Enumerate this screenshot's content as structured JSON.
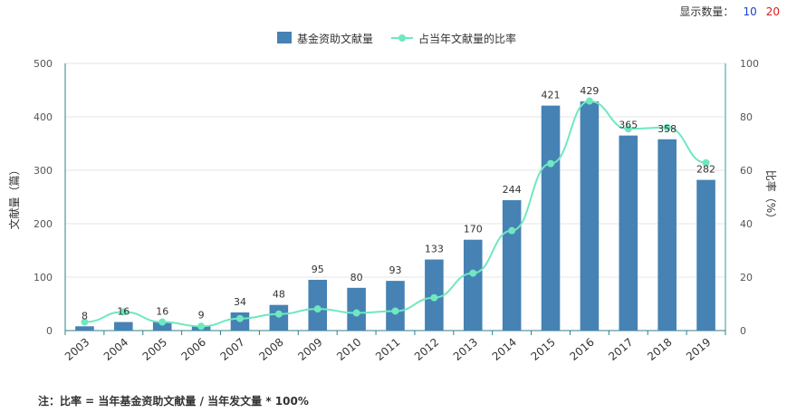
{
  "display_count": {
    "label": "显示数量：",
    "options": [
      "10",
      "20"
    ],
    "colors": [
      "#1a3fd6",
      "#d61a1a"
    ]
  },
  "chart_data": {
    "type": "bar+line",
    "categories": [
      "2003",
      "2004",
      "2005",
      "2006",
      "2007",
      "2008",
      "2009",
      "2010",
      "2011",
      "2012",
      "2013",
      "2014",
      "2015",
      "2016",
      "2017",
      "2018",
      "2019"
    ],
    "series": [
      {
        "name": "基金资助文献量",
        "type": "bar",
        "axis": "left",
        "color": "#4682b4",
        "values": [
          8,
          16,
          16,
          9,
          34,
          48,
          95,
          80,
          93,
          133,
          170,
          244,
          421,
          429,
          365,
          358,
          282
        ],
        "labels_shown": true
      },
      {
        "name": "占当年文献量的比率",
        "type": "line",
        "axis": "right",
        "color": "#6ee8c0",
        "values": [
          3.2,
          7.0,
          3.2,
          1.6,
          4.5,
          6.2,
          8.1,
          6.6,
          7.3,
          12.3,
          21.5,
          37.4,
          62.5,
          85.9,
          75.5,
          76.0,
          62.8
        ]
      }
    ],
    "ylabel": "文献量（篇）",
    "y2label": "比率（%）",
    "ylim": [
      0,
      500
    ],
    "y2lim": [
      0,
      100
    ],
    "yticks": [
      0,
      100,
      200,
      300,
      400,
      500
    ],
    "y2ticks": [
      0,
      20,
      40,
      60,
      80,
      100
    ],
    "grid": true,
    "legend_position": "top-center"
  },
  "note": "注：比率 = 当年基金资助文献量 / 当年发文量 * 100%"
}
